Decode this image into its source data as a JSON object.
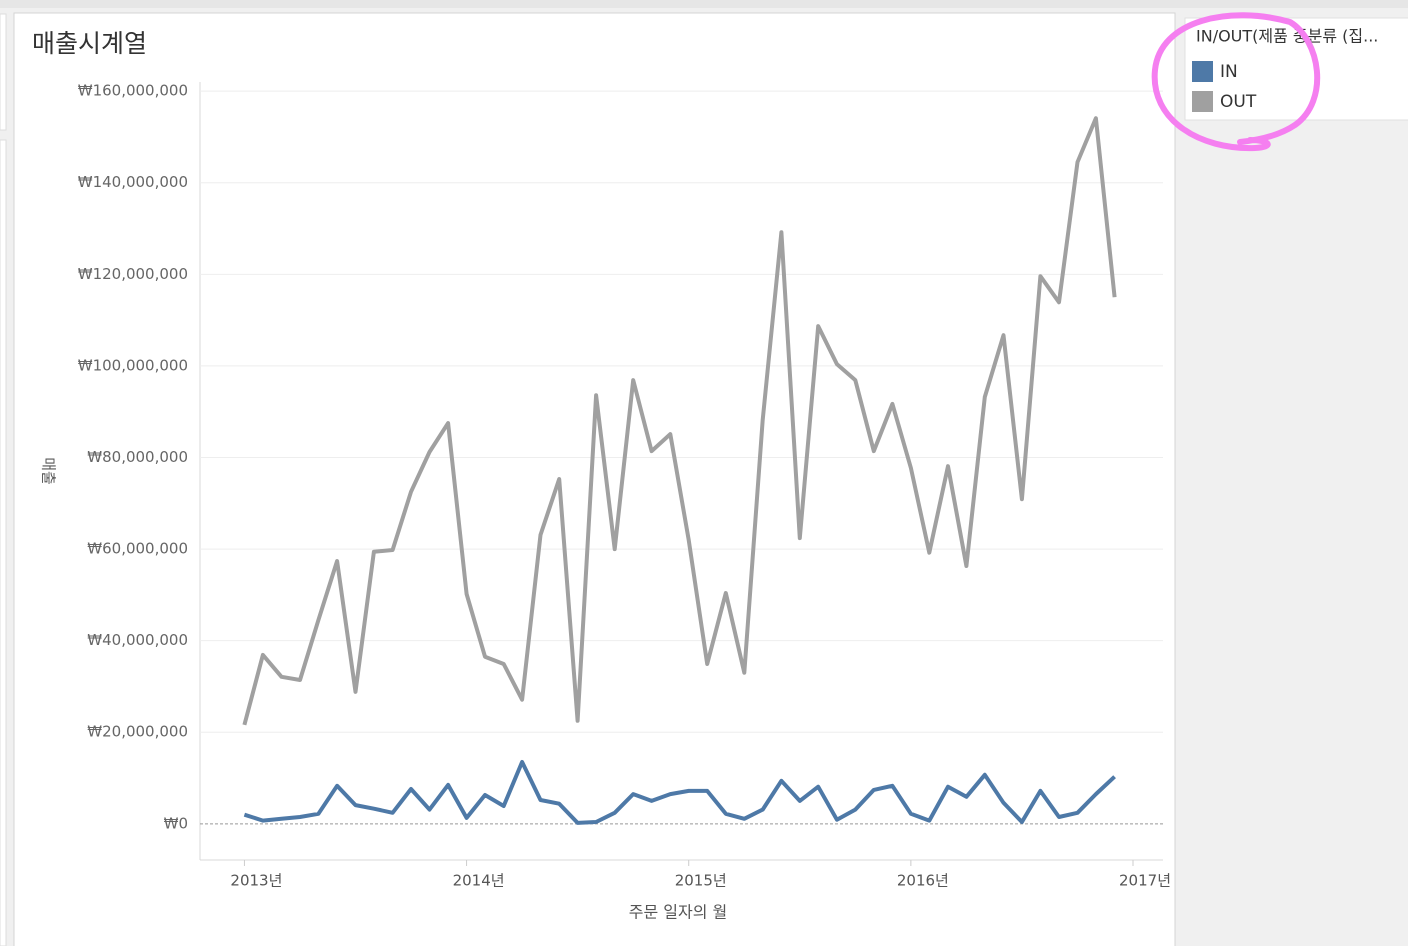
{
  "chart_data": {
    "type": "line",
    "title": "매출시계열",
    "x_label": "주문 일자의 월",
    "y_label": "매출",
    "legend_title": "IN/OUT(제품 중분류 (집...",
    "x": [
      2013,
      2013.083,
      2013.167,
      2013.25,
      2013.333,
      2013.417,
      2013.5,
      2013.583,
      2013.667,
      2013.75,
      2013.833,
      2013.917,
      2014,
      2014.083,
      2014.167,
      2014.25,
      2014.333,
      2014.417,
      2014.5,
      2014.583,
      2014.667,
      2014.75,
      2014.833,
      2014.917,
      2015,
      2015.083,
      2015.167,
      2015.25,
      2015.333,
      2015.417,
      2015.5,
      2015.583,
      2015.667,
      2015.75,
      2015.833,
      2015.917,
      2016,
      2016.083,
      2016.167,
      2016.25,
      2016.333,
      2016.417,
      2016.5,
      2016.583,
      2016.667,
      2016.75,
      2016.833,
      2016.917
    ],
    "series": [
      {
        "name": "IN",
        "color": "#4e79a7",
        "values": [
          2000000,
          700000,
          1100000,
          1500000,
          2200000,
          8300000,
          4100000,
          3300000,
          2400000,
          7600000,
          3100000,
          8500000,
          1300000,
          6300000,
          3900000,
          13500000,
          5200000,
          4400000,
          200000,
          400000,
          2400000,
          6500000,
          5000000,
          6500000,
          7200000,
          7200000,
          2200000,
          1100000,
          3100000,
          9400000,
          5000000,
          8100000,
          900000,
          3100000,
          7400000,
          8300000,
          2200000,
          700000,
          8100000,
          5900000,
          10700000,
          4600000,
          400000,
          7200000,
          1500000,
          2400000,
          6500000,
          10300000
        ]
      },
      {
        "name": "OUT",
        "color": "#a0a0a0",
        "values": [
          21600000,
          36900000,
          32100000,
          31400000,
          44500000,
          57400000,
          28800000,
          59400000,
          59800000,
          72500000,
          81200000,
          87500000,
          50200000,
          36500000,
          34900000,
          27100000,
          63100000,
          75300000,
          22500000,
          93600000,
          60000000,
          96900000,
          81400000,
          85100000,
          62000000,
          34900000,
          50400000,
          33000000,
          88200000,
          129200000,
          62400000,
          108700000,
          100400000,
          96900000,
          81400000,
          91700000,
          77700000,
          59200000,
          78100000,
          56300000,
          93200000,
          106700000,
          70900000,
          119600000,
          113900000,
          144500000,
          154100000,
          115000000
        ]
      }
    ],
    "xlim": [
      2012.8,
      2017.135
    ],
    "xticks": [
      {
        "value": 2013,
        "label": "2013년"
      },
      {
        "value": 2014,
        "label": "2014년"
      },
      {
        "value": 2015,
        "label": "2015년"
      },
      {
        "value": 2016,
        "label": "2016년"
      },
      {
        "value": 2017,
        "label": "2017년"
      }
    ],
    "ylim": [
      -7900000,
      162000000
    ],
    "yticks": [
      {
        "value": 0,
        "label": "₩0"
      },
      {
        "value": 20000000,
        "label": "₩20,000,000"
      },
      {
        "value": 40000000,
        "label": "₩40,000,000"
      },
      {
        "value": 60000000,
        "label": "₩60,000,000"
      },
      {
        "value": 80000000,
        "label": "₩80,000,000"
      },
      {
        "value": 100000000,
        "label": "₩100,000,000"
      },
      {
        "value": 120000000,
        "label": "₩120,000,000"
      },
      {
        "value": 140000000,
        "label": "₩140,000,000"
      },
      {
        "value": 160000000,
        "label": "₩160,000,000"
      }
    ],
    "grid": true
  }
}
